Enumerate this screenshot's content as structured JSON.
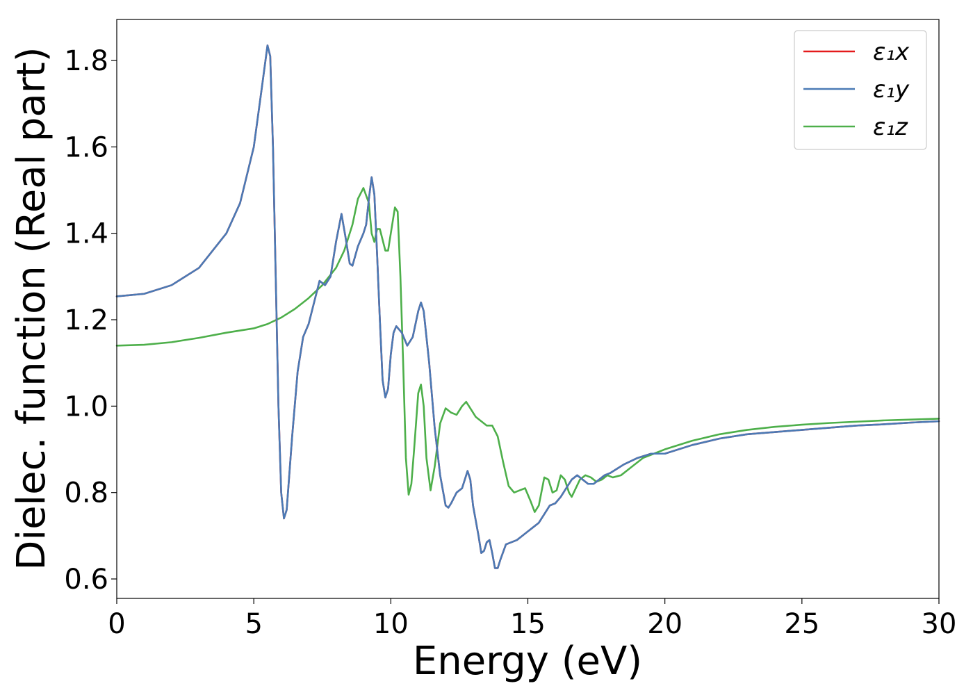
{
  "chart_data": {
    "type": "line",
    "title": "",
    "xlabel": "Energy (eV)",
    "ylabel": "Dielec. function (Real part)",
    "xlim": [
      0,
      30
    ],
    "ylim": [
      0.555,
      1.895
    ],
    "xticks": [
      0,
      5,
      10,
      15,
      20,
      25,
      30
    ],
    "xtick_labels": [
      "0",
      "5",
      "10",
      "15",
      "20",
      "25",
      "30"
    ],
    "yticks": [
      0.6,
      0.8,
      1.0,
      1.2,
      1.4,
      1.6,
      1.8
    ],
    "ytick_labels": [
      "0.6",
      "0.8",
      "1.0",
      "1.2",
      "1.4",
      "1.6",
      "1.8"
    ],
    "grid": false,
    "legend_position": "top-right",
    "series": [
      {
        "name": "ε₁x",
        "color": "#e41a1c",
        "points": [
          [
            0,
            1.254
          ],
          [
            1,
            1.26
          ],
          [
            2,
            1.28
          ],
          [
            3,
            1.32
          ],
          [
            4,
            1.4
          ],
          [
            4.5,
            1.47
          ],
          [
            5,
            1.6
          ],
          [
            5.3,
            1.74
          ],
          [
            5.5,
            1.835
          ],
          [
            5.6,
            1.81
          ],
          [
            5.7,
            1.6
          ],
          [
            5.8,
            1.3
          ],
          [
            5.9,
            1.0
          ],
          [
            6.0,
            0.8
          ],
          [
            6.1,
            0.74
          ],
          [
            6.2,
            0.76
          ],
          [
            6.4,
            0.93
          ],
          [
            6.6,
            1.08
          ],
          [
            6.8,
            1.16
          ],
          [
            7.0,
            1.19
          ],
          [
            7.2,
            1.24
          ],
          [
            7.4,
            1.29
          ],
          [
            7.6,
            1.28
          ],
          [
            7.8,
            1.3
          ],
          [
            8.0,
            1.38
          ],
          [
            8.2,
            1.445
          ],
          [
            8.35,
            1.39
          ],
          [
            8.5,
            1.33
          ],
          [
            8.6,
            1.325
          ],
          [
            8.8,
            1.37
          ],
          [
            9.0,
            1.4
          ],
          [
            9.1,
            1.42
          ],
          [
            9.2,
            1.48
          ],
          [
            9.3,
            1.53
          ],
          [
            9.4,
            1.49
          ],
          [
            9.5,
            1.35
          ],
          [
            9.6,
            1.2
          ],
          [
            9.7,
            1.06
          ],
          [
            9.8,
            1.02
          ],
          [
            9.9,
            1.04
          ],
          [
            10.0,
            1.12
          ],
          [
            10.1,
            1.17
          ],
          [
            10.2,
            1.185
          ],
          [
            10.4,
            1.17
          ],
          [
            10.6,
            1.14
          ],
          [
            10.8,
            1.16
          ],
          [
            11.0,
            1.22
          ],
          [
            11.1,
            1.24
          ],
          [
            11.2,
            1.22
          ],
          [
            11.4,
            1.1
          ],
          [
            11.6,
            0.95
          ],
          [
            11.8,
            0.84
          ],
          [
            12.0,
            0.77
          ],
          [
            12.1,
            0.765
          ],
          [
            12.2,
            0.775
          ],
          [
            12.4,
            0.8
          ],
          [
            12.6,
            0.81
          ],
          [
            12.8,
            0.85
          ],
          [
            12.9,
            0.83
          ],
          [
            13.0,
            0.77
          ],
          [
            13.2,
            0.7
          ],
          [
            13.3,
            0.66
          ],
          [
            13.4,
            0.665
          ],
          [
            13.5,
            0.685
          ],
          [
            13.6,
            0.69
          ],
          [
            13.7,
            0.66
          ],
          [
            13.8,
            0.625
          ],
          [
            13.9,
            0.625
          ],
          [
            14.0,
            0.645
          ],
          [
            14.2,
            0.68
          ],
          [
            14.4,
            0.685
          ],
          [
            14.6,
            0.69
          ],
          [
            14.8,
            0.7
          ],
          [
            15.0,
            0.71
          ],
          [
            15.2,
            0.72
          ],
          [
            15.4,
            0.73
          ],
          [
            15.6,
            0.75
          ],
          [
            15.8,
            0.77
          ],
          [
            16.0,
            0.775
          ],
          [
            16.2,
            0.79
          ],
          [
            16.4,
            0.81
          ],
          [
            16.6,
            0.83
          ],
          [
            16.8,
            0.84
          ],
          [
            17.0,
            0.83
          ],
          [
            17.2,
            0.82
          ],
          [
            17.4,
            0.82
          ],
          [
            17.6,
            0.83
          ],
          [
            17.8,
            0.84
          ],
          [
            18.0,
            0.845
          ],
          [
            18.5,
            0.865
          ],
          [
            19.0,
            0.88
          ],
          [
            19.5,
            0.89
          ],
          [
            20.0,
            0.89
          ],
          [
            21,
            0.91
          ],
          [
            22,
            0.925
          ],
          [
            23,
            0.935
          ],
          [
            24,
            0.94
          ],
          [
            25,
            0.945
          ],
          [
            26,
            0.95
          ],
          [
            27,
            0.955
          ],
          [
            28,
            0.958
          ],
          [
            29,
            0.962
          ],
          [
            30,
            0.965
          ]
        ]
      },
      {
        "name": "ε₁y",
        "color": "#4a7ab5",
        "points": [
          [
            0,
            1.254
          ],
          [
            1,
            1.26
          ],
          [
            2,
            1.28
          ],
          [
            3,
            1.32
          ],
          [
            4,
            1.4
          ],
          [
            4.5,
            1.47
          ],
          [
            5,
            1.6
          ],
          [
            5.3,
            1.74
          ],
          [
            5.5,
            1.835
          ],
          [
            5.6,
            1.81
          ],
          [
            5.7,
            1.6
          ],
          [
            5.8,
            1.3
          ],
          [
            5.9,
            1.0
          ],
          [
            6.0,
            0.8
          ],
          [
            6.1,
            0.74
          ],
          [
            6.2,
            0.76
          ],
          [
            6.4,
            0.93
          ],
          [
            6.6,
            1.08
          ],
          [
            6.8,
            1.16
          ],
          [
            7.0,
            1.19
          ],
          [
            7.2,
            1.24
          ],
          [
            7.4,
            1.29
          ],
          [
            7.6,
            1.28
          ],
          [
            7.8,
            1.3
          ],
          [
            8.0,
            1.38
          ],
          [
            8.2,
            1.445
          ],
          [
            8.35,
            1.39
          ],
          [
            8.5,
            1.33
          ],
          [
            8.6,
            1.325
          ],
          [
            8.8,
            1.37
          ],
          [
            9.0,
            1.4
          ],
          [
            9.1,
            1.42
          ],
          [
            9.2,
            1.48
          ],
          [
            9.3,
            1.53
          ],
          [
            9.4,
            1.49
          ],
          [
            9.5,
            1.35
          ],
          [
            9.6,
            1.2
          ],
          [
            9.7,
            1.06
          ],
          [
            9.8,
            1.02
          ],
          [
            9.9,
            1.04
          ],
          [
            10.0,
            1.12
          ],
          [
            10.1,
            1.17
          ],
          [
            10.2,
            1.185
          ],
          [
            10.4,
            1.17
          ],
          [
            10.6,
            1.14
          ],
          [
            10.8,
            1.16
          ],
          [
            11.0,
            1.22
          ],
          [
            11.1,
            1.24
          ],
          [
            11.2,
            1.22
          ],
          [
            11.4,
            1.1
          ],
          [
            11.6,
            0.95
          ],
          [
            11.8,
            0.84
          ],
          [
            12.0,
            0.77
          ],
          [
            12.1,
            0.765
          ],
          [
            12.2,
            0.775
          ],
          [
            12.4,
            0.8
          ],
          [
            12.6,
            0.81
          ],
          [
            12.8,
            0.85
          ],
          [
            12.9,
            0.83
          ],
          [
            13.0,
            0.77
          ],
          [
            13.2,
            0.7
          ],
          [
            13.3,
            0.66
          ],
          [
            13.4,
            0.665
          ],
          [
            13.5,
            0.685
          ],
          [
            13.6,
            0.69
          ],
          [
            13.7,
            0.66
          ],
          [
            13.8,
            0.625
          ],
          [
            13.9,
            0.625
          ],
          [
            14.0,
            0.645
          ],
          [
            14.2,
            0.68
          ],
          [
            14.4,
            0.685
          ],
          [
            14.6,
            0.69
          ],
          [
            14.8,
            0.7
          ],
          [
            15.0,
            0.71
          ],
          [
            15.2,
            0.72
          ],
          [
            15.4,
            0.73
          ],
          [
            15.6,
            0.75
          ],
          [
            15.8,
            0.77
          ],
          [
            16.0,
            0.775
          ],
          [
            16.2,
            0.79
          ],
          [
            16.4,
            0.81
          ],
          [
            16.6,
            0.83
          ],
          [
            16.8,
            0.84
          ],
          [
            17.0,
            0.83
          ],
          [
            17.2,
            0.82
          ],
          [
            17.4,
            0.82
          ],
          [
            17.6,
            0.83
          ],
          [
            17.8,
            0.84
          ],
          [
            18.0,
            0.845
          ],
          [
            18.5,
            0.865
          ],
          [
            19.0,
            0.88
          ],
          [
            19.5,
            0.89
          ],
          [
            20.0,
            0.89
          ],
          [
            21,
            0.91
          ],
          [
            22,
            0.925
          ],
          [
            23,
            0.935
          ],
          [
            24,
            0.94
          ],
          [
            25,
            0.945
          ],
          [
            26,
            0.95
          ],
          [
            27,
            0.955
          ],
          [
            28,
            0.958
          ],
          [
            29,
            0.962
          ],
          [
            30,
            0.965
          ]
        ]
      },
      {
        "name": "ε₁z",
        "color": "#4daf4a",
        "points": [
          [
            0,
            1.14
          ],
          [
            1,
            1.142
          ],
          [
            2,
            1.148
          ],
          [
            3,
            1.158
          ],
          [
            4,
            1.17
          ],
          [
            5,
            1.18
          ],
          [
            5.5,
            1.19
          ],
          [
            6.0,
            1.205
          ],
          [
            6.5,
            1.225
          ],
          [
            7.0,
            1.25
          ],
          [
            7.5,
            1.28
          ],
          [
            8.0,
            1.32
          ],
          [
            8.3,
            1.36
          ],
          [
            8.6,
            1.42
          ],
          [
            8.8,
            1.48
          ],
          [
            9.0,
            1.505
          ],
          [
            9.2,
            1.47
          ],
          [
            9.3,
            1.4
          ],
          [
            9.4,
            1.38
          ],
          [
            9.5,
            1.41
          ],
          [
            9.6,
            1.41
          ],
          [
            9.8,
            1.36
          ],
          [
            9.9,
            1.36
          ],
          [
            10.0,
            1.4
          ],
          [
            10.15,
            1.46
          ],
          [
            10.25,
            1.45
          ],
          [
            10.35,
            1.3
          ],
          [
            10.45,
            1.1
          ],
          [
            10.55,
            0.88
          ],
          [
            10.65,
            0.795
          ],
          [
            10.75,
            0.82
          ],
          [
            10.85,
            0.9
          ],
          [
            11.0,
            1.03
          ],
          [
            11.1,
            1.05
          ],
          [
            11.2,
            1.0
          ],
          [
            11.3,
            0.88
          ],
          [
            11.45,
            0.805
          ],
          [
            11.6,
            0.86
          ],
          [
            11.8,
            0.96
          ],
          [
            12.0,
            0.995
          ],
          [
            12.2,
            0.985
          ],
          [
            12.4,
            0.98
          ],
          [
            12.6,
            1.0
          ],
          [
            12.75,
            1.01
          ],
          [
            12.9,
            0.995
          ],
          [
            13.1,
            0.975
          ],
          [
            13.3,
            0.965
          ],
          [
            13.5,
            0.955
          ],
          [
            13.7,
            0.955
          ],
          [
            13.9,
            0.93
          ],
          [
            14.1,
            0.87
          ],
          [
            14.3,
            0.815
          ],
          [
            14.5,
            0.8
          ],
          [
            14.7,
            0.805
          ],
          [
            14.9,
            0.81
          ],
          [
            15.1,
            0.78
          ],
          [
            15.25,
            0.755
          ],
          [
            15.4,
            0.77
          ],
          [
            15.6,
            0.835
          ],
          [
            15.75,
            0.83
          ],
          [
            15.9,
            0.8
          ],
          [
            16.05,
            0.805
          ],
          [
            16.2,
            0.84
          ],
          [
            16.35,
            0.83
          ],
          [
            16.5,
            0.8
          ],
          [
            16.6,
            0.79
          ],
          [
            16.75,
            0.81
          ],
          [
            16.9,
            0.83
          ],
          [
            17.1,
            0.84
          ],
          [
            17.3,
            0.835
          ],
          [
            17.5,
            0.825
          ],
          [
            17.7,
            0.83
          ],
          [
            17.9,
            0.84
          ],
          [
            18.1,
            0.835
          ],
          [
            18.4,
            0.84
          ],
          [
            18.8,
            0.86
          ],
          [
            19.2,
            0.88
          ],
          [
            19.6,
            0.89
          ],
          [
            20.0,
            0.9
          ],
          [
            21,
            0.92
          ],
          [
            22,
            0.935
          ],
          [
            23,
            0.945
          ],
          [
            24,
            0.952
          ],
          [
            25,
            0.957
          ],
          [
            26,
            0.961
          ],
          [
            27,
            0.964
          ],
          [
            28,
            0.967
          ],
          [
            29,
            0.969
          ],
          [
            30,
            0.971
          ]
        ]
      }
    ]
  }
}
